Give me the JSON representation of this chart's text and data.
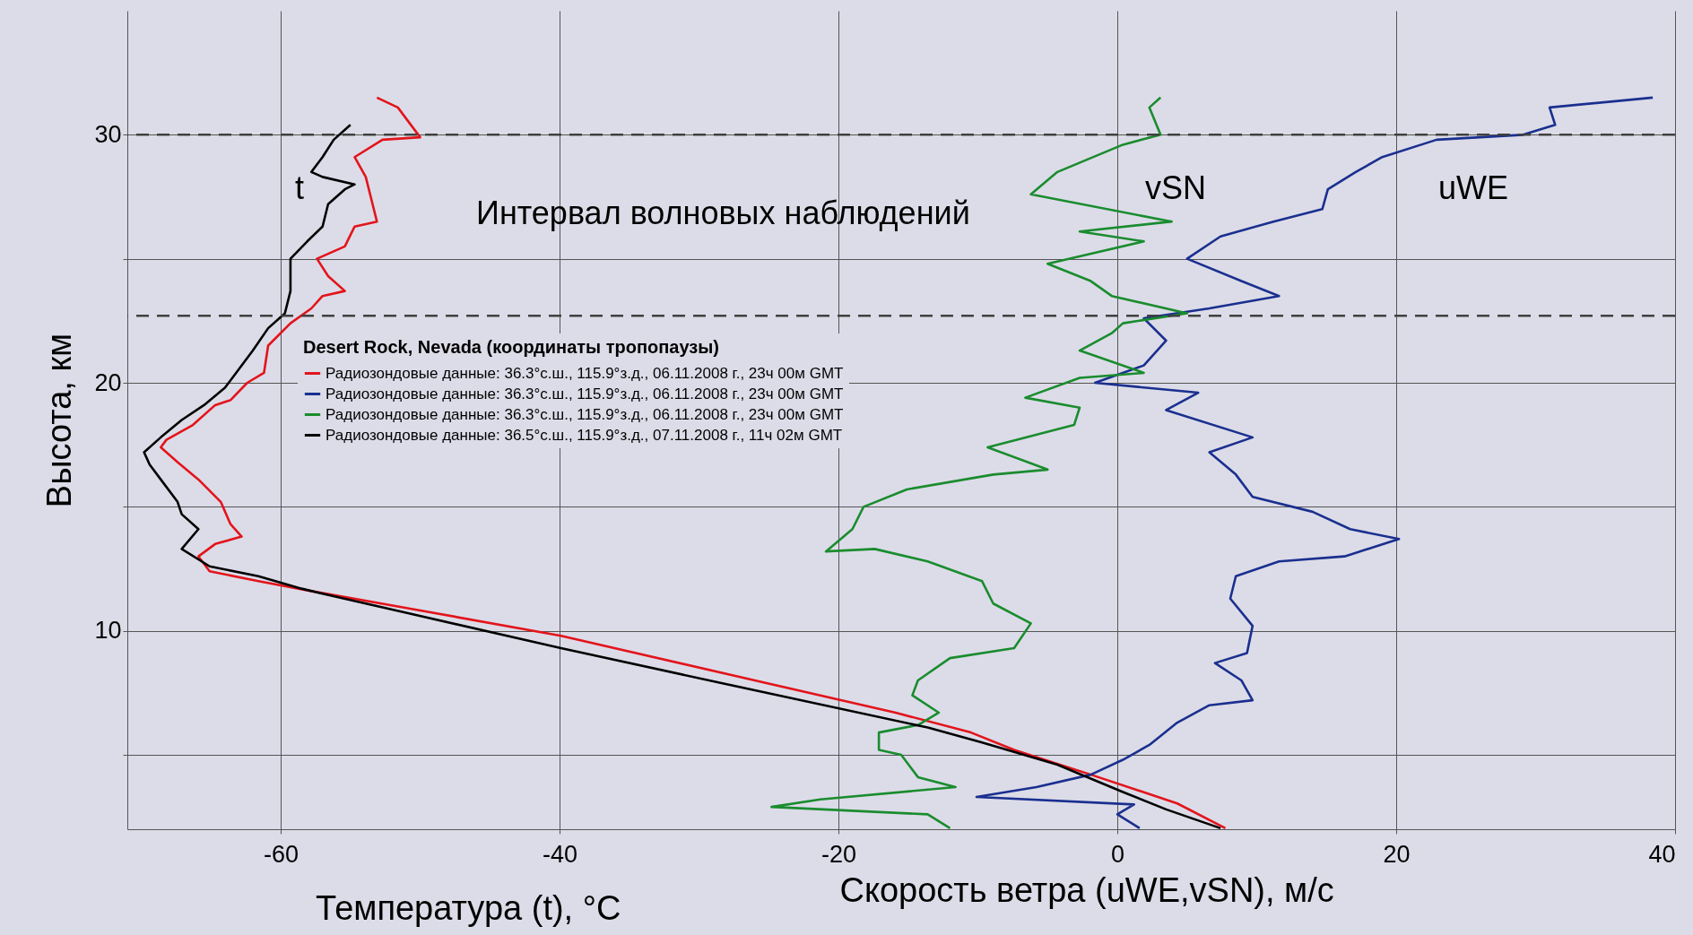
{
  "chart_data": {
    "type": "line",
    "xlabel": "Температура (t), °C",
    "ylabel": "Высота, км",
    "legend_title": "Desert Rock, Nevada (координаты тропопаузы)",
    "legend": "left",
    "grid": true,
    "line_style": "solid",
    "marker": "none",
    "xlim": [
      -71,
      40
    ],
    "xticks": [
      -60,
      -40,
      -20,
      0,
      20,
      40
    ],
    "ylim": [
      2,
      35
    ],
    "yticks": [
      {
        "value": 5,
        "label": null
      },
      10,
      {
        "value": 15,
        "label": null
      },
      20,
      {
        "value": 25,
        "label": null
      },
      30
    ],
    "ref_lines": [
      {
        "axis": "y",
        "value": 30,
        "label": null,
        "color": "#404040",
        "line_style": "dashed"
      },
      {
        "axis": "y",
        "value": 22.7,
        "label": null,
        "color": "#404040",
        "line_style": "dashed"
      }
    ],
    "annotations": [
      "t",
      "Интервал волновых наблюдений",
      "vSN",
      "uWE",
      "Скорость ветра (uWE,vSN), м/с"
    ],
    "series": [
      {
        "name": "Радиозондовые данные: 36.3°с.ш., 115.9°з.д., 06.11.2008 г., 23ч 00м GMT",
        "color": "#e3141b",
        "x": [
          7.75,
          4.3,
          -1.9,
          -7.4,
          -10.5,
          -15.9,
          -26.0,
          -39.9,
          -50.8,
          -57.8,
          -61.6,
          -65.1,
          -65.5,
          -65.9,
          -64.7,
          -62.8,
          -63.6,
          -64.3,
          -65.9,
          -67.4,
          -68.6,
          -68.2,
          -66.3,
          -64.7,
          -63.6,
          -62.4,
          -61.2,
          -60.9,
          -59.3,
          -57.8,
          -57.0,
          -55.4,
          -56.6,
          -57.4,
          -55.4,
          -54.7,
          -53.1,
          -53.5,
          -53.9,
          -54.7,
          -52.7,
          -50.0,
          -51.6,
          -53.1
        ],
        "values": [
          2.04,
          3.04,
          4.2,
          5.2,
          5.9,
          6.7,
          8.0,
          9.8,
          10.9,
          11.6,
          12.0,
          12.4,
          12.7,
          13.0,
          13.5,
          13.8,
          14.3,
          15.2,
          16.1,
          16.8,
          17.4,
          17.7,
          18.3,
          19.1,
          19.3,
          20.0,
          20.4,
          21.5,
          22.4,
          23.0,
          23.5,
          23.7,
          24.3,
          25.0,
          25.5,
          26.3,
          26.5,
          27.4,
          28.3,
          29.1,
          29.8,
          29.9,
          31.1,
          31.5
        ]
      },
      {
        "name": "Радиозондовые данные: 36.3°с.ш., 115.9°з.д., 06.11.2008 г., 23ч 00м GMT",
        "color": "#1a2f8f",
        "x": [
          1.6,
          0.0,
          1.2,
          -10.1,
          -5.8,
          -1.9,
          0.4,
          2.3,
          4.3,
          6.6,
          9.7,
          8.9,
          7.0,
          9.3,
          9.7,
          8.1,
          8.5,
          11.6,
          16.3,
          20.2,
          16.7,
          14.0,
          9.7,
          8.5,
          6.6,
          9.7,
          3.5,
          5.8,
          -1.6,
          1.9,
          3.5,
          1.9,
          6.6,
          11.6,
          8.9,
          5.0,
          7.4,
          11.2,
          14.7,
          15.1,
          17.1,
          19.0,
          22.9,
          29.1,
          31.4,
          31.0,
          38.4
        ],
        "values": [
          2.04,
          2.6,
          3.0,
          3.3,
          3.7,
          4.2,
          4.8,
          5.4,
          6.3,
          7.0,
          7.2,
          8.0,
          8.7,
          9.1,
          10.2,
          11.3,
          12.2,
          12.8,
          13.0,
          13.7,
          14.1,
          14.8,
          15.4,
          16.3,
          17.2,
          17.8,
          18.9,
          19.6,
          20.0,
          20.7,
          21.7,
          22.6,
          23.0,
          23.5,
          24.1,
          25.0,
          25.9,
          26.5,
          27.0,
          27.8,
          28.5,
          29.1,
          29.8,
          30.0,
          30.4,
          31.1,
          31.5
        ]
      },
      {
        "name": "Радиозондовые данные: 36.3°с.ш., 115.9°з.д., 06.11.2008 г., 23ч 00м GMT",
        "color": "#1a8c2e",
        "x": [
          -12.0,
          -13.6,
          -24.8,
          -21.3,
          -11.6,
          -14.3,
          -15.5,
          -17.1,
          -17.1,
          -14.3,
          -12.8,
          -14.7,
          -14.3,
          -12.0,
          -7.4,
          -6.2,
          -8.9,
          -9.7,
          -13.6,
          -17.4,
          -20.9,
          -19.0,
          -18.2,
          -15.1,
          -8.9,
          -5.0,
          -9.3,
          -3.1,
          -2.7,
          -6.6,
          -2.7,
          1.9,
          -2.7,
          -0.4,
          0.4,
          5.0,
          -0.4,
          -1.9,
          -5.0,
          1.9,
          -2.7,
          3.9,
          -6.2,
          -4.3,
          0.4,
          3.1,
          2.3,
          3.1
        ],
        "values": [
          2.04,
          2.6,
          2.9,
          3.2,
          3.7,
          4.1,
          5.0,
          5.2,
          5.9,
          6.2,
          6.7,
          7.4,
          8.0,
          8.9,
          9.3,
          10.3,
          11.1,
          12.0,
          12.8,
          13.3,
          13.2,
          14.1,
          15.0,
          15.7,
          16.3,
          16.5,
          17.4,
          18.3,
          19.0,
          19.4,
          20.2,
          20.4,
          21.3,
          22.0,
          22.4,
          22.8,
          23.5,
          24.1,
          24.8,
          25.7,
          26.1,
          26.5,
          27.6,
          28.5,
          29.6,
          30.0,
          31.1,
          31.5
        ]
      },
      {
        "name": "Радиозондовые данные: 36.5°с.ш., 115.9°з.д., 07.11.2008 г., 11ч 02м GMT",
        "color": "#000000",
        "x": [
          7.4,
          3.5,
          0.4,
          -4.3,
          -9.7,
          -13.6,
          -26.0,
          -39.9,
          -50.8,
          -57.0,
          -58.5,
          -61.6,
          -65.1,
          -67.1,
          -65.9,
          -67.1,
          -67.4,
          -68.6,
          -69.4,
          -69.8,
          -68.6,
          -67.1,
          -65.5,
          -64.0,
          -63.2,
          -62.0,
          -60.9,
          -59.7,
          -59.3,
          -59.3,
          -58.1,
          -57.0,
          -56.6,
          -55.4,
          -54.7,
          -57.0,
          -57.8,
          -57.0,
          -56.2,
          -55.0
        ],
        "values": [
          2.04,
          2.8,
          3.5,
          4.6,
          5.5,
          6.1,
          7.6,
          9.3,
          10.7,
          11.5,
          11.7,
          12.2,
          12.6,
          13.3,
          14.1,
          14.7,
          15.2,
          16.1,
          16.7,
          17.2,
          17.8,
          18.5,
          19.1,
          19.8,
          20.4,
          21.3,
          22.2,
          22.8,
          23.7,
          25.0,
          25.7,
          26.3,
          27.2,
          27.8,
          28.0,
          28.3,
          28.5,
          29.1,
          29.8,
          30.4
        ]
      }
    ]
  }
}
